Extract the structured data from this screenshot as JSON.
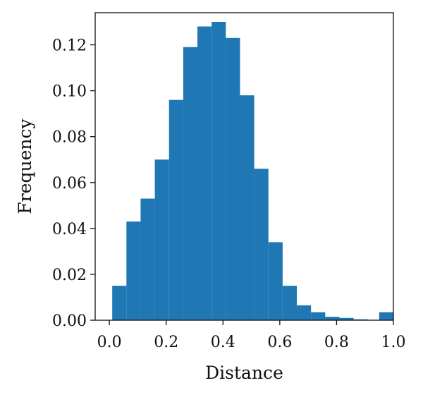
{
  "chart_data": {
    "type": "bar",
    "xlabel": "Distance",
    "ylabel": "Frequency",
    "xlim": [
      -0.05,
      1.0
    ],
    "ylim": [
      0,
      0.134
    ],
    "bar_color": "#1f77b4",
    "bins": [
      {
        "start": 0.01,
        "end": 0.06,
        "value": 0.015
      },
      {
        "start": 0.06,
        "end": 0.11,
        "value": 0.043
      },
      {
        "start": 0.11,
        "end": 0.16,
        "value": 0.053
      },
      {
        "start": 0.16,
        "end": 0.21,
        "value": 0.07
      },
      {
        "start": 0.21,
        "end": 0.26,
        "value": 0.096
      },
      {
        "start": 0.26,
        "end": 0.31,
        "value": 0.119
      },
      {
        "start": 0.31,
        "end": 0.36,
        "value": 0.128
      },
      {
        "start": 0.36,
        "end": 0.41,
        "value": 0.13
      },
      {
        "start": 0.41,
        "end": 0.46,
        "value": 0.123
      },
      {
        "start": 0.46,
        "end": 0.51,
        "value": 0.098
      },
      {
        "start": 0.51,
        "end": 0.56,
        "value": 0.066
      },
      {
        "start": 0.56,
        "end": 0.61,
        "value": 0.034
      },
      {
        "start": 0.61,
        "end": 0.66,
        "value": 0.015
      },
      {
        "start": 0.66,
        "end": 0.71,
        "value": 0.0065
      },
      {
        "start": 0.71,
        "end": 0.76,
        "value": 0.0035
      },
      {
        "start": 0.76,
        "end": 0.81,
        "value": 0.0015
      },
      {
        "start": 0.81,
        "end": 0.86,
        "value": 0.001
      },
      {
        "start": 0.86,
        "end": 0.91,
        "value": 0.0004
      },
      {
        "start": 0.91,
        "end": 0.95,
        "value": 0.0002
      },
      {
        "start": 0.95,
        "end": 1.0,
        "value": 0.0035
      }
    ],
    "x_ticks": [
      {
        "value": 0.0,
        "label": "0.0"
      },
      {
        "value": 0.2,
        "label": "0.2"
      },
      {
        "value": 0.4,
        "label": "0.4"
      },
      {
        "value": 0.6,
        "label": "0.6"
      },
      {
        "value": 0.8,
        "label": "0.8"
      },
      {
        "value": 1.0,
        "label": "1.0"
      }
    ],
    "y_ticks": [
      {
        "value": 0.0,
        "label": "0.00"
      },
      {
        "value": 0.02,
        "label": "0.02"
      },
      {
        "value": 0.04,
        "label": "0.04"
      },
      {
        "value": 0.06,
        "label": "0.06"
      },
      {
        "value": 0.08,
        "label": "0.08"
      },
      {
        "value": 0.1,
        "label": "0.10"
      },
      {
        "value": 0.12,
        "label": "0.12"
      }
    ],
    "grid": false
  }
}
